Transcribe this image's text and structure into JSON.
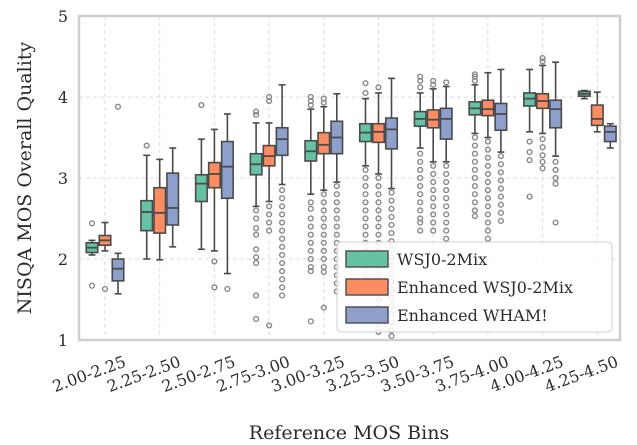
{
  "chart_data": {
    "type": "box",
    "xlabel": "Reference MOS Bins",
    "ylabel": "NISQA MOS Overall Quality",
    "ylim": [
      1,
      5
    ],
    "yticks": [
      1,
      2,
      3,
      4,
      5
    ],
    "grid": true,
    "legend_position": "lower-right",
    "categories": [
      "2.00-2.25",
      "2.25-2.50",
      "2.50-2.75",
      "2.75-3.00",
      "3.00-3.25",
      "3.25-3.50",
      "3.50-3.75",
      "3.75-4.00",
      "4.00-4.25",
      "4.25-4.50"
    ],
    "series": [
      {
        "name": "WSJ0-2Mix",
        "color": "#66c2a5",
        "boxes": [
          {
            "whislo": 2.05,
            "q1": 2.08,
            "med": 2.14,
            "q3": 2.2,
            "whishi": 2.23,
            "fliers": [
              2.44,
              1.67
            ]
          },
          {
            "whislo": 2.0,
            "q1": 2.35,
            "med": 2.58,
            "q3": 2.72,
            "whishi": 3.28,
            "fliers": [
              3.4
            ]
          },
          {
            "whislo": 2.12,
            "q1": 2.71,
            "med": 2.93,
            "q3": 3.04,
            "whishi": 3.48,
            "fliers": [
              3.9
            ]
          },
          {
            "whislo": 2.65,
            "q1": 3.04,
            "med": 3.17,
            "q3": 3.3,
            "whishi": 3.68,
            "fliers": [
              3.78,
              3.82,
              2.6,
              2.5,
              2.38,
              2.3,
              2.12,
              2.02,
              1.95,
              1.55,
              1.26
            ]
          },
          {
            "whislo": 2.8,
            "q1": 3.21,
            "med": 3.33,
            "q3": 3.46,
            "whishi": 3.85,
            "fliers": [
              3.9,
              3.95,
              4.0,
              2.7,
              2.62,
              2.5,
              2.4,
              2.3,
              2.2,
              2.1,
              2.0,
              1.9,
              1.85,
              1.23
            ]
          },
          {
            "whislo": 3.15,
            "q1": 3.45,
            "med": 3.56,
            "q3": 3.67,
            "whishi": 3.98,
            "fliers": [
              4.05,
              4.17,
              3.1,
              3.0,
              2.9,
              2.8,
              2.7,
              2.6,
              2.5,
              2.4,
              2.3,
              2.2,
              2.1,
              2.0,
              1.9,
              1.8
            ]
          },
          {
            "whislo": 3.37,
            "q1": 3.64,
            "med": 3.73,
            "q3": 3.82,
            "whishi": 4.05,
            "fliers": [
              4.12,
              4.2,
              4.25,
              3.3,
              3.2,
              3.1,
              3.0,
              2.9,
              2.8,
              2.7,
              2.6,
              2.5,
              2.45,
              2.35
            ]
          },
          {
            "whislo": 3.55,
            "q1": 3.78,
            "med": 3.86,
            "q3": 3.94,
            "whishi": 4.15,
            "fliers": [
              4.2,
              4.25,
              4.28,
              3.5,
              3.4,
              3.3,
              3.2,
              3.1,
              3.0,
              2.9,
              2.8,
              2.7,
              2.6,
              2.53
            ]
          },
          {
            "whislo": 3.57,
            "q1": 3.89,
            "med": 3.98,
            "q3": 4.05,
            "whishi": 4.34,
            "fliers": [
              3.45,
              3.32,
              3.22,
              2.77
            ]
          },
          {
            "whislo": 3.98,
            "q1": 4.01,
            "med": 4.04,
            "q3": 4.07,
            "whishi": 4.08,
            "fliers": []
          }
        ]
      },
      {
        "name": "Enhanced WSJ0-2Mix",
        "color": "#fc8d62",
        "boxes": [
          {
            "whislo": 2.1,
            "q1": 2.17,
            "med": 2.23,
            "q3": 2.29,
            "whishi": 2.45,
            "fliers": [
              1.63
            ]
          },
          {
            "whislo": 1.99,
            "q1": 2.32,
            "med": 2.57,
            "q3": 2.88,
            "whishi": 3.23,
            "fliers": []
          },
          {
            "whislo": 2.1,
            "q1": 2.88,
            "med": 3.05,
            "q3": 3.19,
            "whishi": 3.6,
            "fliers": [
              1.97,
              1.65
            ]
          },
          {
            "whislo": 2.71,
            "q1": 3.15,
            "med": 3.27,
            "q3": 3.4,
            "whishi": 3.68,
            "fliers": [
              3.95,
              4.0,
              2.65,
              2.55,
              2.45,
              2.35,
              1.18
            ]
          },
          {
            "whislo": 2.85,
            "q1": 3.3,
            "med": 3.41,
            "q3": 3.56,
            "whishi": 3.88,
            "fliers": [
              3.93,
              3.98,
              2.8,
              2.7,
              2.6,
              2.5,
              2.4,
              2.3,
              2.2,
              2.1,
              2.0,
              1.9,
              1.84,
              1.4
            ]
          },
          {
            "whislo": 3.05,
            "q1": 3.44,
            "med": 3.57,
            "q3": 3.67,
            "whishi": 4.05,
            "fliers": [
              4.12,
              3.0,
              2.9,
              2.8,
              2.7,
              2.6,
              2.5,
              2.4,
              2.3,
              2.2,
              2.1,
              2.0,
              1.9,
              1.8,
              1.7,
              1.6,
              1.5,
              1.4,
              1.3,
              1.2,
              1.1
            ]
          },
          {
            "whislo": 3.2,
            "q1": 3.62,
            "med": 3.72,
            "q3": 3.84,
            "whishi": 4.1,
            "fliers": [
              4.15,
              4.2,
              3.15,
              3.05,
              2.95,
              2.85,
              2.75,
              2.65,
              2.55,
              2.45,
              2.35
            ]
          },
          {
            "whislo": 3.5,
            "q1": 3.77,
            "med": 3.85,
            "q3": 3.96,
            "whishi": 4.3,
            "fliers": [
              3.45,
              3.35,
              3.25,
              3.15,
              3.05,
              2.95,
              2.85,
              2.75,
              2.65,
              2.55,
              2.45,
              2.35,
              2.25
            ]
          },
          {
            "whislo": 3.55,
            "q1": 3.86,
            "med": 3.95,
            "q3": 4.04,
            "whishi": 4.39,
            "fliers": [
              4.44,
              4.48,
              3.48,
              3.38,
              3.28,
              3.2,
              3.12
            ]
          },
          {
            "whislo": 3.57,
            "q1": 3.65,
            "med": 3.73,
            "q3": 3.9,
            "whishi": 4.06,
            "fliers": []
          }
        ]
      },
      {
        "name": "Enhanced WHAM!",
        "color": "#8da0cb",
        "boxes": [
          {
            "whislo": 1.57,
            "q1": 1.73,
            "med": 1.88,
            "q3": 2.0,
            "whishi": 2.07,
            "fliers": [
              3.88
            ]
          },
          {
            "whislo": 2.15,
            "q1": 2.42,
            "med": 2.63,
            "q3": 3.06,
            "whishi": 3.37,
            "fliers": []
          },
          {
            "whislo": 1.82,
            "q1": 2.75,
            "med": 3.14,
            "q3": 3.45,
            "whishi": 3.79,
            "fliers": [
              1.63
            ]
          },
          {
            "whislo": 2.92,
            "q1": 3.28,
            "med": 3.48,
            "q3": 3.62,
            "whishi": 4.15,
            "fliers": [
              2.85,
              2.75,
              2.65,
              2.55,
              2.45,
              2.35,
              2.25,
              2.15,
              2.05,
              1.95,
              1.85,
              1.75,
              1.65,
              1.55
            ]
          },
          {
            "whislo": 2.95,
            "q1": 3.3,
            "med": 3.5,
            "q3": 3.7,
            "whishi": 4.04,
            "fliers": [
              2.9,
              2.8,
              2.7,
              2.6,
              2.5,
              2.4,
              2.3,
              2.2,
              2.1,
              2.0,
              1.9,
              1.8,
              1.7,
              1.6
            ]
          },
          {
            "whislo": 2.87,
            "q1": 3.36,
            "med": 3.6,
            "q3": 3.74,
            "whishi": 4.23,
            "fliers": [
              2.82,
              2.72,
              2.62,
              2.52,
              2.42,
              2.32,
              2.22,
              2.12,
              2.02,
              1.92,
              1.82,
              1.72,
              1.62,
              1.52,
              1.42,
              1.32,
              1.22,
              1.12,
              1.05
            ]
          },
          {
            "whislo": 3.2,
            "q1": 3.48,
            "med": 3.73,
            "q3": 3.86,
            "whishi": 4.13,
            "fliers": [
              4.18,
              3.15,
              3.05,
              2.95,
              2.85,
              2.75,
              2.65,
              2.55,
              2.45,
              2.35,
              2.25
            ]
          },
          {
            "whislo": 3.32,
            "q1": 3.59,
            "med": 3.79,
            "q3": 3.92,
            "whishi": 4.34,
            "fliers": [
              3.27,
              3.17,
              3.07,
              2.97,
              2.87,
              2.77,
              2.67,
              2.57,
              2.47
            ]
          },
          {
            "whislo": 3.27,
            "q1": 3.62,
            "med": 3.85,
            "q3": 3.96,
            "whishi": 4.43,
            "fliers": [
              3.2,
              3.1,
              3.0,
              2.93,
              2.45
            ]
          },
          {
            "whislo": 3.37,
            "q1": 3.45,
            "med": 3.57,
            "q3": 3.64,
            "whishi": 3.67,
            "fliers": []
          }
        ]
      }
    ]
  }
}
